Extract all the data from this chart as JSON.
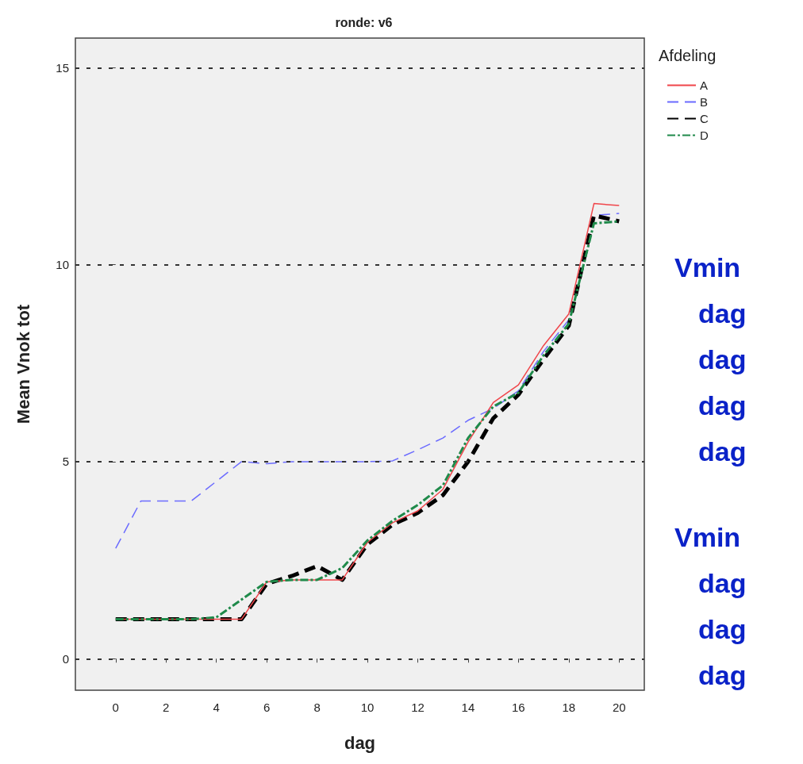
{
  "chart_data": {
    "type": "line",
    "title": "ronde: v6",
    "xlabel": "dag",
    "ylabel": "Mean Vnok tot",
    "legend_title": "Afdeling",
    "legend": "top right",
    "grid": "y",
    "marker": "none",
    "x": [
      0,
      1,
      2,
      3,
      4,
      5,
      6,
      7,
      8,
      9,
      10,
      11,
      12,
      13,
      14,
      15,
      16,
      17,
      18,
      19,
      20
    ],
    "xlim": [
      -1.6,
      21
    ],
    "xticks": [
      0,
      2,
      4,
      6,
      8,
      10,
      12,
      14,
      16,
      18,
      20
    ],
    "ylim": [
      -0.8,
      15.75
    ],
    "yticks": [
      0,
      5,
      10,
      15
    ],
    "series": [
      {
        "name": "A",
        "color": "#f0454a",
        "line_style": "solid",
        "values": [
          1,
          1,
          1,
          1,
          1,
          1,
          1.95,
          2,
          2,
          2,
          2.95,
          3.45,
          3.75,
          4.3,
          5.5,
          6.5,
          6.95,
          7.95,
          8.75,
          11.55,
          11.5
        ]
      },
      {
        "name": "B",
        "color": "#6b6bff",
        "line_style": "dashed",
        "values": [
          2.8,
          4,
          4,
          4,
          4.5,
          5,
          4.95,
          5,
          5,
          5,
          5,
          5.02,
          5.3,
          5.6,
          6.05,
          6.35,
          6.8,
          7.8,
          8.6,
          11.25,
          11.3
        ]
      },
      {
        "name": "C",
        "color": "#000000",
        "line_style": "dashed",
        "values": [
          1,
          1,
          1,
          1,
          1,
          1,
          1.9,
          2.1,
          2.35,
          2,
          2.9,
          3.4,
          3.7,
          4.15,
          5,
          6.1,
          6.7,
          7.6,
          8.45,
          11.25,
          11.1
        ]
      },
      {
        "name": "D",
        "color": "#1f8a4a",
        "line_style": "dashdot",
        "values": [
          1,
          1,
          1,
          1,
          1.05,
          1.5,
          1.95,
          2,
          2,
          2.3,
          3,
          3.5,
          3.9,
          4.4,
          5.6,
          6.4,
          6.75,
          7.7,
          8.5,
          11.05,
          11.1
        ]
      }
    ],
    "annotations": [
      "Vmin",
      "dag",
      "dag",
      "dag",
      "dag",
      "Vmin",
      "dag",
      "dag",
      "dag"
    ]
  }
}
